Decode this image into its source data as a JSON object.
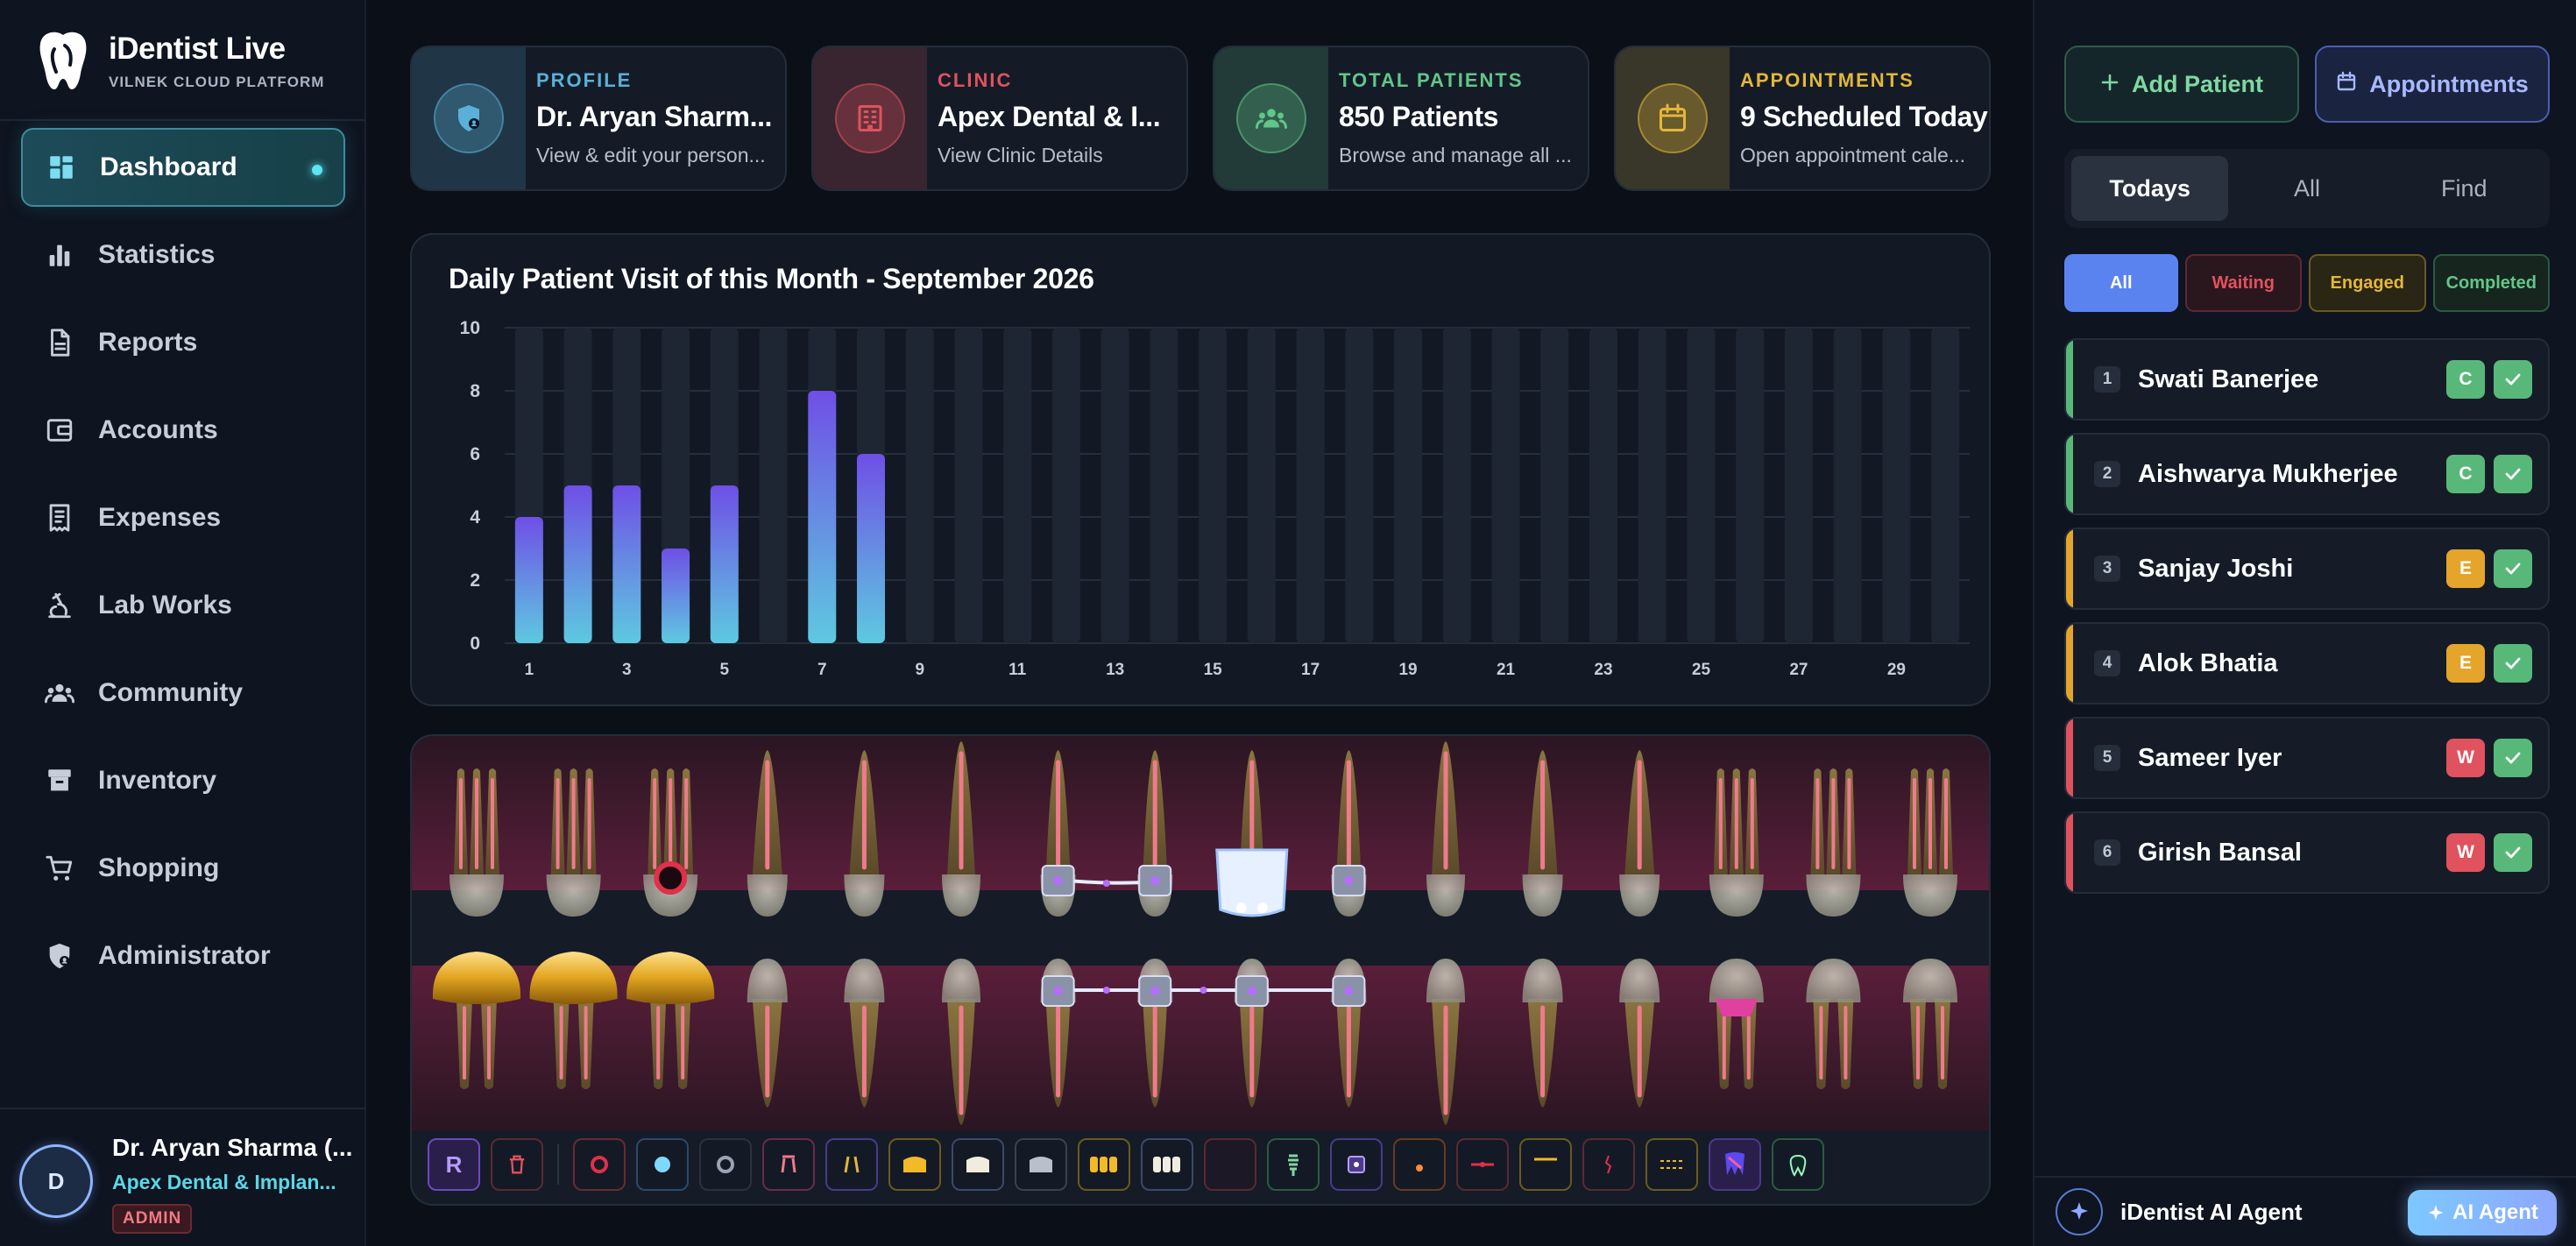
{
  "brand": {
    "title": "iDentist Live",
    "subtitle": "VILNEK CLOUD PLATFORM"
  },
  "nav": [
    {
      "label": "Dashboard",
      "icon": "dashboard-icon",
      "active": true
    },
    {
      "label": "Statistics",
      "icon": "bar-chart-icon"
    },
    {
      "label": "Reports",
      "icon": "document-icon"
    },
    {
      "label": "Accounts",
      "icon": "wallet-icon"
    },
    {
      "label": "Expenses",
      "icon": "receipt-icon"
    },
    {
      "label": "Lab Works",
      "icon": "microscope-icon"
    },
    {
      "label": "Community",
      "icon": "people-icon"
    },
    {
      "label": "Inventory",
      "icon": "archive-box-icon"
    },
    {
      "label": "Shopping",
      "icon": "cart-icon"
    },
    {
      "label": "Administrator",
      "icon": "shield-user-icon"
    }
  ],
  "user": {
    "initial": "D",
    "name": "Dr. Aryan Sharma (...",
    "clinic": "Apex Dental & Implan...",
    "role": "ADMIN"
  },
  "cards": [
    {
      "kicker": "PROFILE",
      "title": "Dr. Aryan Sharm...",
      "subtitle": "View & edit your person...",
      "icon": "shield-user-icon",
      "color": "#5ab0d8"
    },
    {
      "kicker": "CLINIC",
      "title": "Apex Dental & I...",
      "subtitle": "View Clinic Details",
      "icon": "building-icon",
      "color": "#e0525e"
    },
    {
      "kicker": "TOTAL PATIENTS",
      "title": "850 Patients",
      "subtitle": "Browse and manage all ...",
      "icon": "people-icon",
      "color": "#62c68a"
    },
    {
      "kicker": "APPOINTMENTS",
      "title": "9 Scheduled Today",
      "subtitle": "Open appointment cale...",
      "icon": "calendar-icon",
      "color": "#e4b739"
    }
  ],
  "chart_data": {
    "type": "bar",
    "title": "Daily Patient Visit of this Month - September 2026",
    "categories": [
      1,
      2,
      3,
      4,
      5,
      6,
      7,
      8,
      9,
      10,
      11,
      12,
      13,
      14,
      15,
      16,
      17,
      18,
      19,
      20,
      21,
      22,
      23,
      24,
      25,
      26,
      27,
      28,
      29,
      30
    ],
    "values": [
      4,
      5,
      5,
      3,
      5,
      0,
      8,
      6,
      0,
      0,
      0,
      0,
      0,
      0,
      0,
      0,
      0,
      0,
      0,
      0,
      0,
      0,
      0,
      0,
      0,
      0,
      0,
      0,
      0,
      0
    ],
    "x_tick_labels": [
      "1",
      "3",
      "5",
      "7",
      "9",
      "11",
      "13",
      "15",
      "17",
      "19",
      "21",
      "23",
      "25",
      "27",
      "29"
    ],
    "y_tick_labels": [
      "0",
      "2",
      "4",
      "6",
      "8",
      "10"
    ],
    "ylim": [
      0,
      10
    ],
    "xlabel": "",
    "ylabel": "",
    "grid": true,
    "colors": {
      "bar_top": "#6f4fe6",
      "bar_bottom": "#5ec9e0",
      "track": "#1e2633"
    }
  },
  "teeth_toolbar": [
    {
      "name": "reset-tool",
      "label": "R"
    },
    {
      "name": "delete-tool"
    },
    {
      "name": "filling-red-tool"
    },
    {
      "name": "filling-blue-tool"
    },
    {
      "name": "filling-gray-tool"
    },
    {
      "name": "root-canal-tool"
    },
    {
      "name": "roots-tool"
    },
    {
      "name": "gold-crown-tool"
    },
    {
      "name": "ceramic-crown-tool"
    },
    {
      "name": "metal-crown-tool"
    },
    {
      "name": "gold-bridge-tool"
    },
    {
      "name": "ceramic-bridge-tool"
    },
    {
      "name": "blank-tool"
    },
    {
      "name": "implant-tool"
    },
    {
      "name": "bracket-tool"
    },
    {
      "name": "spot-tool"
    },
    {
      "name": "red-line-tool"
    },
    {
      "name": "gold-line-tool"
    },
    {
      "name": "fracture-tool"
    },
    {
      "name": "wire-tool"
    },
    {
      "name": "tooth-scan-tool"
    },
    {
      "name": "healthy-tooth-tool"
    }
  ],
  "actions": {
    "add_patient": "Add Patient",
    "appointments": "Appointments"
  },
  "tabs": [
    {
      "label": "Todays",
      "active": true
    },
    {
      "label": "All"
    },
    {
      "label": "Find"
    }
  ],
  "filters": [
    "All",
    "Waiting",
    "Engaged",
    "Completed"
  ],
  "patients": [
    {
      "num": "1",
      "name": "Swati Banerjee",
      "status": "C",
      "color": "#58b879"
    },
    {
      "num": "2",
      "name": "Aishwarya Mukherjee",
      "status": "C",
      "color": "#58b879"
    },
    {
      "num": "3",
      "name": "Sanjay Joshi",
      "status": "E",
      "color": "#e4a52a"
    },
    {
      "num": "4",
      "name": "Alok Bhatia",
      "status": "E",
      "color": "#e4a52a"
    },
    {
      "num": "5",
      "name": "Sameer Iyer",
      "status": "W",
      "color": "#e0525e"
    },
    {
      "num": "6",
      "name": "Girish Bansal",
      "status": "W",
      "color": "#e0525e"
    }
  ],
  "agent": {
    "title": "iDentist AI Agent",
    "button": "AI Agent"
  }
}
